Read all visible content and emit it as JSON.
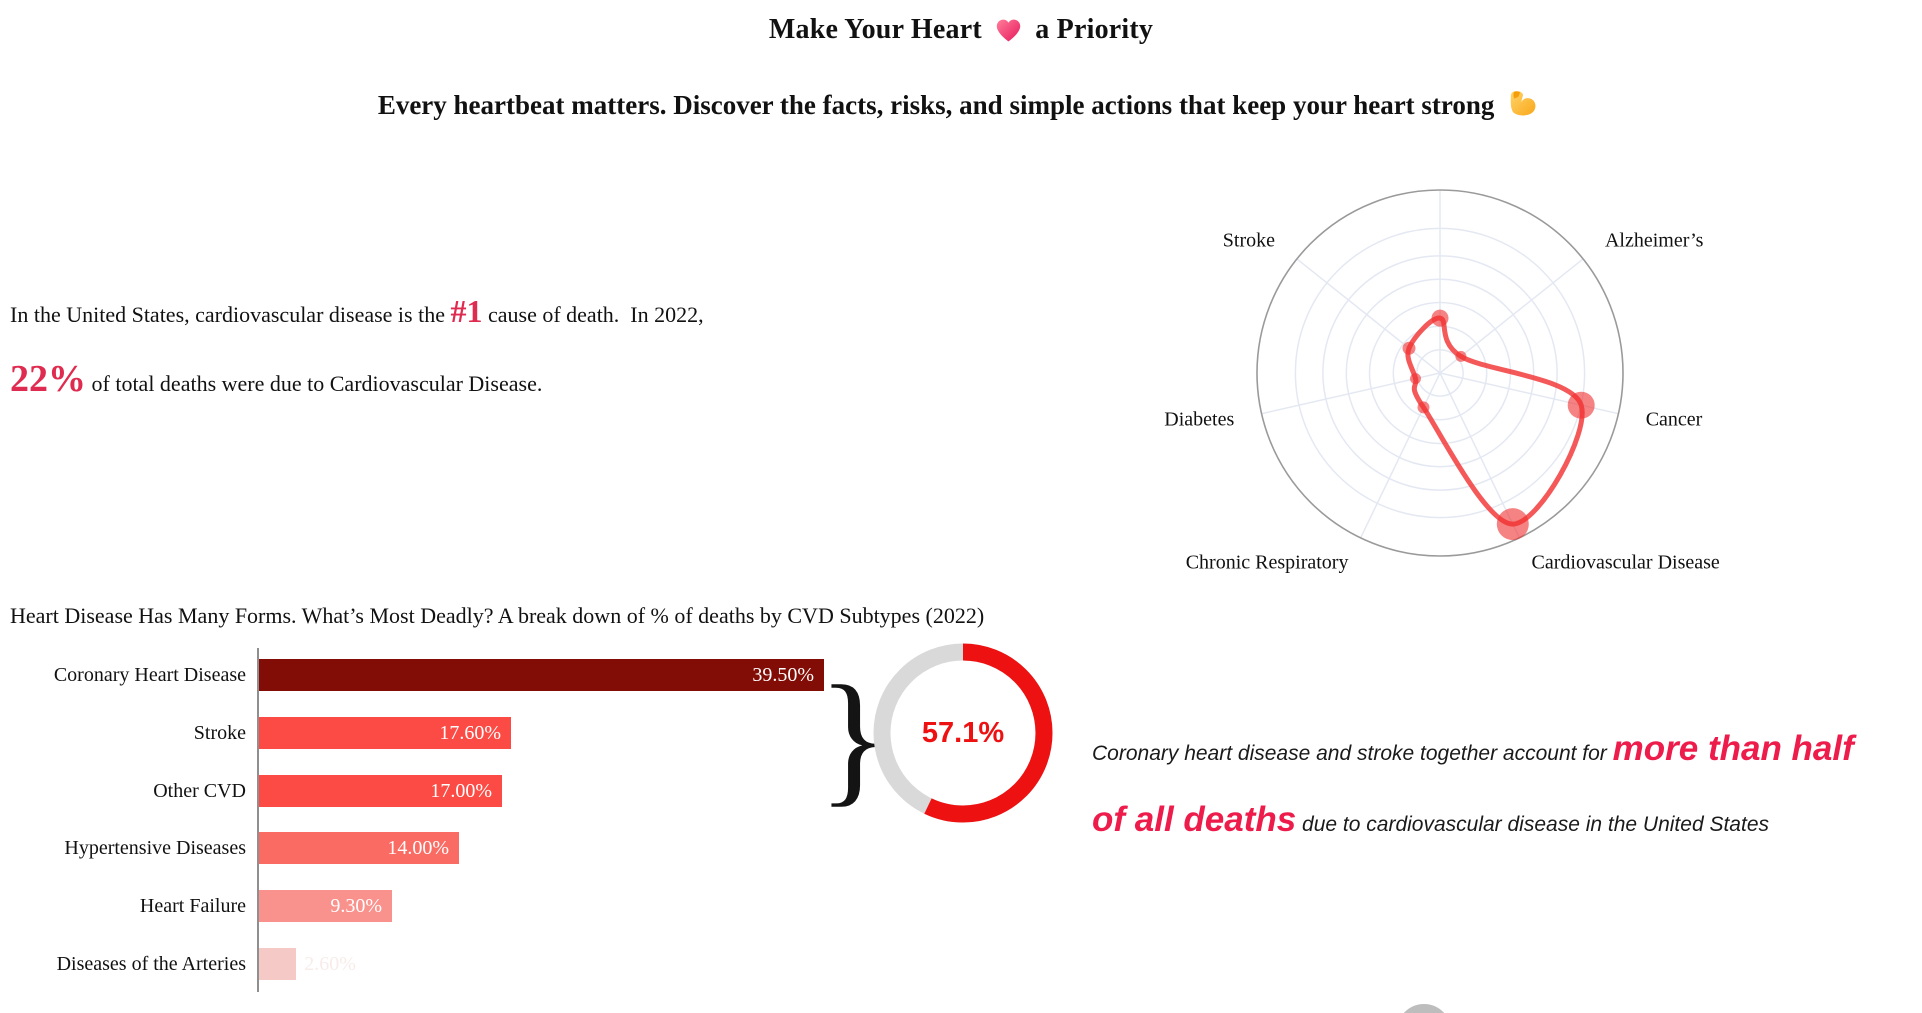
{
  "header": {
    "title_before": "Make Your Heart",
    "title_after": "a Priority",
    "subtitle": "Every heartbeat matters. Discover the facts, risks, and simple actions that keep your heart strong"
  },
  "facts": {
    "line1_pre": "In the United States, cardiovascular disease is the ",
    "line1_highlight": "#1",
    "line1_post": " cause of death.  In 2022,",
    "line2_highlight": "22%",
    "line2_post": " of total deaths were due to Cardiovascular Disease.",
    "highlight_color": "#DF2B4F"
  },
  "section": {
    "bar_title": "Heart Disease Has Many Forms. What’s Most Deadly? A break down of % of deaths by CVD Subtypes (2022)"
  },
  "chart_data": [
    {
      "id": "causes-of-death-radar",
      "type": "radar",
      "description": "Share of total US deaths by cause, 2022 (polar scatter; top spoke unlabeled in image)",
      "categories": [
        "",
        "Alzheimer’s",
        "Cancer",
        "Cardiovascular Disease",
        "Chronic Respiratory",
        "Diabetes",
        "Stroke"
      ],
      "values": [
        7.2,
        3.5,
        19.0,
        22.0,
        5.0,
        3.3,
        5.2
      ],
      "angles_deg": [
        90,
        38.57,
        -12.86,
        -64.29,
        -115.71,
        -167.14,
        141.43
      ],
      "marker_radii": [
        8.5,
        5.5,
        13.5,
        16,
        6,
        5.5,
        6.5
      ],
      "r_max": 24,
      "ring_fractions": [
        0.126,
        0.255,
        0.385,
        0.512,
        0.64,
        0.79
      ],
      "line_color": "#F23B3B",
      "marker_color": "#F03030",
      "grid_color": "#E4E8F2",
      "outer_color": "#9A9A9A"
    },
    {
      "id": "cvd-subtypes-bar",
      "type": "bar",
      "orientation": "horizontal",
      "title": "A break down of % of deaths by CVD Subtypes (2022)",
      "categories": [
        "Coronary Heart Disease",
        "Stroke",
        "Other CVD",
        "Hypertensive Diseases",
        "Heart Failure",
        "Diseases of the Arteries"
      ],
      "values": [
        39.5,
        17.6,
        17.0,
        14.0,
        9.3,
        2.6
      ],
      "value_labels": [
        "39.50%",
        "17.60%",
        "17.00%",
        "14.00%",
        "9.30%",
        "2.60%"
      ],
      "bar_colors": [
        "#820D06",
        "#FC4B45",
        "#FC4B45",
        "#FA6B63",
        "#F9928C",
        "#F5C9C5"
      ],
      "xlim": [
        0,
        39.5
      ],
      "value_label_color": "#FFFFFF",
      "faint_label_color": "#F8ECEA"
    },
    {
      "id": "combined-share-donut",
      "type": "donut",
      "value_pct": 57.1,
      "label": "57.1%",
      "filled_color": "#ED1111",
      "track_color": "#D9D9D9"
    }
  ],
  "callout": {
    "brace": "}"
  },
  "annotation": {
    "pre": "Coronary heart disease and stroke together account for ",
    "big_line1": "more than half",
    "big_line2": "of all deaths",
    "post": " due to cardiovascular disease in the United States",
    "big_color": "#ED1C4B"
  }
}
